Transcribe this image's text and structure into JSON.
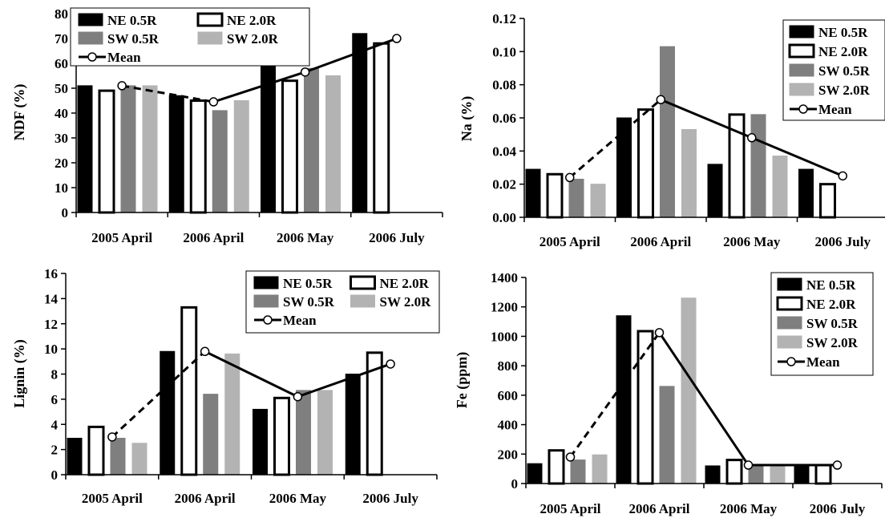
{
  "colors": {
    "ne_05r": "#000000",
    "ne_20r": "#ffffff",
    "sw_05r": "#7f7f7f",
    "sw_20r": "#b3b3b3",
    "mean": "#000000"
  },
  "chart_data": [
    {
      "type": "bar",
      "ylabel": "NDF (%)",
      "categories": [
        "2005 April",
        "2006 April",
        "2006 May",
        "2006 July"
      ],
      "ylim": [
        0,
        80
      ],
      "yticks": [
        "0",
        "10",
        "20",
        "30",
        "40",
        "50",
        "60",
        "70",
        "80"
      ],
      "legend": "top-left",
      "series": [
        {
          "name": "NE 0.5R",
          "values": [
            51,
            47,
            60,
            72
          ]
        },
        {
          "name": "NE 2.0R",
          "values": [
            49,
            45,
            53,
            68
          ]
        },
        {
          "name": "SW 0.5R",
          "values": [
            51,
            41,
            58,
            null
          ]
        },
        {
          "name": "SW 2.0R",
          "values": [
            51,
            45,
            55,
            null
          ]
        }
      ],
      "mean": {
        "name": "Mean",
        "values": [
          51,
          44.5,
          56.5,
          70
        ],
        "dashed_segments": [
          0
        ]
      },
      "grid": false
    },
    {
      "type": "bar",
      "ylabel": "Na (%)",
      "categories": [
        "2005 April",
        "2006 April",
        "2006 May",
        "2006 July"
      ],
      "ylim": [
        0,
        0.12
      ],
      "yticks": [
        "0.00",
        "0.02",
        "0.04",
        "0.06",
        "0.08",
        "0.10",
        "0.12"
      ],
      "legend": "top-right",
      "series": [
        {
          "name": "NE 0.5R",
          "values": [
            0.029,
            0.06,
            0.032,
            0.029
          ]
        },
        {
          "name": "NE 2.0R",
          "values": [
            0.026,
            0.065,
            0.062,
            0.02
          ]
        },
        {
          "name": "SW 0.5R",
          "values": [
            0.023,
            0.103,
            0.062,
            null
          ]
        },
        {
          "name": "SW 2.0R",
          "values": [
            0.02,
            0.053,
            0.037,
            null
          ]
        }
      ],
      "mean": {
        "name": "Mean",
        "values": [
          0.024,
          0.071,
          0.048,
          0.025
        ],
        "dashed_segments": [
          0
        ]
      },
      "grid": false
    },
    {
      "type": "bar",
      "ylabel": "Lignin (%)",
      "categories": [
        "2005 April",
        "2006 April",
        "2006 May",
        "2006 July"
      ],
      "ylim": [
        0,
        16
      ],
      "yticks": [
        "0",
        "2",
        "4",
        "6",
        "8",
        "10",
        "12",
        "14",
        "16"
      ],
      "legend": "top-right",
      "series": [
        {
          "name": "NE 0.5R",
          "values": [
            2.9,
            9.8,
            5.2,
            8.0
          ]
        },
        {
          "name": "NE 2.0R",
          "values": [
            3.8,
            13.3,
            6.1,
            9.7
          ]
        },
        {
          "name": "SW 0.5R",
          "values": [
            2.9,
            6.4,
            6.7,
            null
          ]
        },
        {
          "name": "SW 2.0R",
          "values": [
            2.5,
            9.6,
            6.7,
            null
          ]
        }
      ],
      "mean": {
        "name": "Mean",
        "values": [
          3.0,
          9.8,
          6.2,
          8.8
        ],
        "dashed_segments": [
          0
        ]
      },
      "grid": false
    },
    {
      "type": "bar",
      "ylabel": "Fe (ppm)",
      "categories": [
        "2005 April",
        "2006 April",
        "2006 May",
        "2006 July"
      ],
      "ylim": [
        0,
        1400
      ],
      "yticks": [
        "0",
        "200",
        "400",
        "600",
        "800",
        "1000",
        "1200",
        "1400"
      ],
      "legend": "top-right",
      "series": [
        {
          "name": "NE 0.5R",
          "values": [
            135,
            1140,
            120,
            125
          ]
        },
        {
          "name": "NE 2.0R",
          "values": [
            225,
            1035,
            160,
            125
          ]
        },
        {
          "name": "SW 0.5R",
          "values": [
            160,
            660,
            125,
            null
          ]
        },
        {
          "name": "SW 2.0R",
          "values": [
            195,
            1260,
            125,
            null
          ]
        }
      ],
      "mean": {
        "name": "Mean",
        "values": [
          180,
          1025,
          125,
          125
        ],
        "dashed_segments": [
          0
        ]
      },
      "grid": false
    }
  ]
}
